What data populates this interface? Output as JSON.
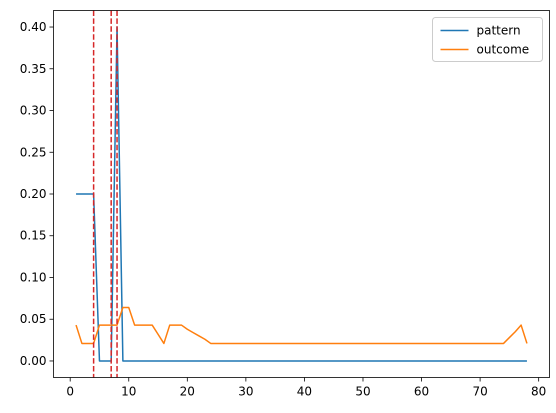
{
  "chart_data": {
    "type": "line",
    "title": "",
    "xlabel": "",
    "ylabel": "",
    "xlim": [
      -2.85,
      81.85
    ],
    "ylim": [
      -0.0198,
      0.4198
    ],
    "xticks": [
      0,
      10,
      20,
      30,
      40,
      50,
      60,
      70,
      80
    ],
    "xtick_labels": [
      "0",
      "10",
      "20",
      "30",
      "40",
      "50",
      "60",
      "70",
      "80"
    ],
    "yticks": [
      0.0,
      0.05,
      0.1,
      0.15,
      0.2,
      0.25,
      0.3,
      0.35,
      0.4
    ],
    "ytick_labels": [
      "0.00",
      "0.05",
      "0.10",
      "0.15",
      "0.20",
      "0.25",
      "0.30",
      "0.35",
      "0.40"
    ],
    "grid": false,
    "legend_position": "upper right",
    "vlines": [
      {
        "x": 4,
        "color": "#d62728",
        "style": "dashed"
      },
      {
        "x": 7,
        "color": "#d62728",
        "style": "dashed"
      },
      {
        "x": 8,
        "color": "#d62728",
        "style": "dashed"
      }
    ],
    "series": [
      {
        "name": "pattern",
        "color": "#1f77b4",
        "x": [
          1,
          2,
          3,
          4,
          5,
          6,
          7,
          8,
          9,
          78
        ],
        "y": [
          0.2,
          0.2,
          0.2,
          0.2,
          0.0,
          0.0,
          0.0,
          0.4,
          0.0,
          0.0
        ]
      },
      {
        "name": "outcome",
        "color": "#ff7f0e",
        "x": [
          1,
          2,
          3,
          4,
          5,
          6,
          7,
          8,
          9,
          10,
          11,
          12,
          13,
          14,
          15,
          16,
          17,
          18,
          19,
          20,
          21,
          22,
          23,
          24,
          25,
          74,
          75,
          76,
          77,
          78
        ],
        "y": [
          0.043,
          0.021,
          0.021,
          0.021,
          0.043,
          0.043,
          0.043,
          0.043,
          0.064,
          0.064,
          0.043,
          0.043,
          0.043,
          0.043,
          0.032,
          0.021,
          0.043,
          0.043,
          0.043,
          0.038,
          0.034,
          0.03,
          0.026,
          0.021,
          0.021,
          0.021,
          0.028,
          0.035,
          0.043,
          0.021
        ]
      }
    ]
  }
}
